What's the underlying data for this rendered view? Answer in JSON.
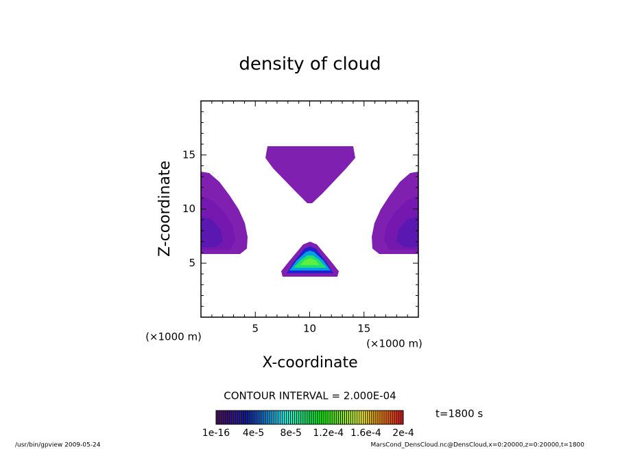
{
  "chart_data": {
    "type": "contour",
    "title": "density of cloud",
    "x_label": "X-coordinate",
    "y_label": "Z-coordinate",
    "x_unit": "(×1000 m)",
    "y_unit": "(×1000 m)",
    "xlim": [
      0,
      20
    ],
    "ylim": [
      0,
      20
    ],
    "xticks": [
      5,
      10,
      15
    ],
    "yticks": [
      5,
      10,
      15
    ],
    "xminorticks": [
      1,
      2,
      3,
      4,
      6,
      7,
      8,
      9,
      11,
      12,
      13,
      14,
      16,
      17,
      18,
      19
    ],
    "yminorticks": [
      1,
      2,
      3,
      4,
      6,
      7,
      8,
      9,
      11,
      12,
      13,
      14,
      16,
      17,
      18,
      19
    ],
    "contour_interval": "CONTOUR INTERVAL = 2.000E-04",
    "clim": [
      1e-16,
      0.0002
    ],
    "cticks": [
      {
        "value": 1e-16,
        "label": "1e-16"
      },
      {
        "value": 4e-05,
        "label": "4e-5"
      },
      {
        "value": 8e-05,
        "label": "8e-5"
      },
      {
        "value": 0.00012,
        "label": "1.2e-4"
      },
      {
        "value": 0.00016,
        "label": "1.6e-4"
      },
      {
        "value": 0.0002,
        "label": "2e-4"
      }
    ],
    "time_label": "t=1800 s",
    "footer_left": "/usr/bin/gpview  2009-05-24",
    "footer_right": "MarsCond_DensCloud.nc@DensCloud,x=0:20000,z=0:20000,t=1800"
  }
}
